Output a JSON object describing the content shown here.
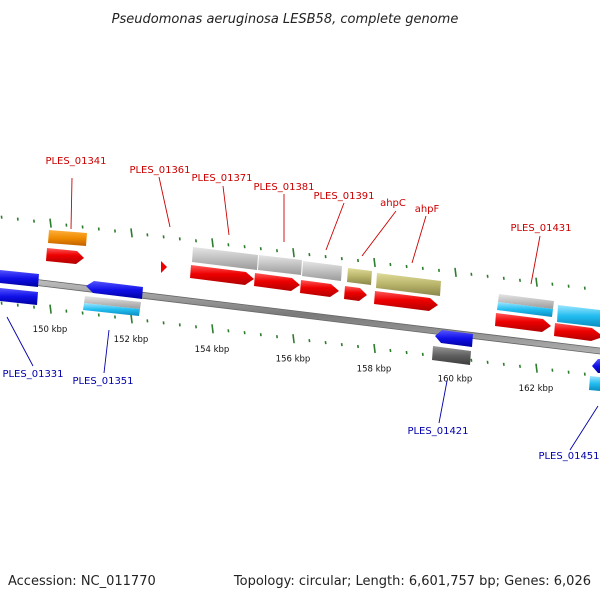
{
  "title": "Pseudomonas aeruginosa LESB58, complete genome",
  "footer": {
    "accession": "Accession: NC_011770",
    "summary": "Topology: circular; Length: 6,601,757 bp; Genes: 6,026"
  },
  "colors": {
    "backbone": "#8a8a8a",
    "tick": "#2e7d2e",
    "label_top": "#cc0000",
    "label_bottom": "#0000aa",
    "red": "#ee0000",
    "orange": "#f08c00",
    "blue": "#1010e8",
    "cyan": "#22bdf0",
    "gray": "#bbbbbb",
    "darkgray": "#606060",
    "olive": "#b8b46a"
  },
  "scale": {
    "ticks": [
      {
        "kbp": 150,
        "label": "150 kbp"
      },
      {
        "kbp": 152,
        "label": "152 kbp"
      },
      {
        "kbp": 154,
        "label": "154 kbp"
      },
      {
        "kbp": 156,
        "label": "156 kbp"
      },
      {
        "kbp": 158,
        "label": "158 kbp"
      },
      {
        "kbp": 160,
        "label": "160 kbp"
      },
      {
        "kbp": 162,
        "label": "162 kbp"
      }
    ]
  },
  "labels": [
    {
      "id": "lbl-ples-01341",
      "text": "PLES_01341",
      "side": "top"
    },
    {
      "id": "lbl-ples-01361",
      "text": "PLES_01361",
      "side": "top"
    },
    {
      "id": "lbl-ples-01371",
      "text": "PLES_01371",
      "side": "top"
    },
    {
      "id": "lbl-ples-01381",
      "text": "PLES_01381",
      "side": "top"
    },
    {
      "id": "lbl-ples-01391",
      "text": "PLES_01391",
      "side": "top"
    },
    {
      "id": "lbl-ahpc",
      "text": "ahpC",
      "side": "top"
    },
    {
      "id": "lbl-ahpf",
      "text": "ahpF",
      "side": "top"
    },
    {
      "id": "lbl-ples-01431",
      "text": "PLES_01431",
      "side": "top"
    },
    {
      "id": "lbl-ples-01331",
      "text": "PLES_01331",
      "side": "bottom"
    },
    {
      "id": "lbl-ples-01351",
      "text": "PLES_01351",
      "side": "bottom"
    },
    {
      "id": "lbl-ples-01421",
      "text": "PLES_01421",
      "side": "bottom"
    },
    {
      "id": "lbl-ples-01451",
      "text": "PLES_01451",
      "side": "bottom"
    }
  ]
}
